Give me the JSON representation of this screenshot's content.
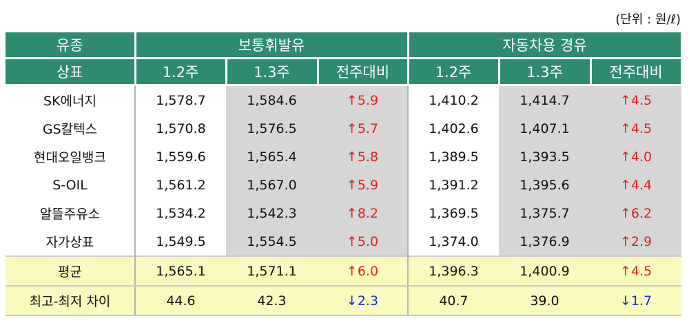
{
  "unit": "(단위 : 원/ℓ)",
  "header": {
    "col0_top": "유종",
    "col0_bottom": "상표",
    "gasoline": "보통휘발유",
    "diesel": "자동차용 경유",
    "week1": "1.2주",
    "week2": "1.3주",
    "change": "전주대비"
  },
  "rows": [
    {
      "brand": "SK에너지",
      "g1": "1,578.7",
      "g2": "1,584.6",
      "gc": "5.9",
      "gd": "up",
      "d1": "1,410.2",
      "d2": "1,414.7",
      "dc": "4.5",
      "dd": "up"
    },
    {
      "brand": "GS칼텍스",
      "g1": "1,570.8",
      "g2": "1,576.5",
      "gc": "5.7",
      "gd": "up",
      "d1": "1,402.6",
      "d2": "1,407.1",
      "dc": "4.5",
      "dd": "up"
    },
    {
      "brand": "현대오일뱅크",
      "g1": "1,559.6",
      "g2": "1,565.4",
      "gc": "5.8",
      "gd": "up",
      "d1": "1,389.5",
      "d2": "1,393.5",
      "dc": "4.0",
      "dd": "up"
    },
    {
      "brand": "S-OIL",
      "g1": "1,561.2",
      "g2": "1,567.0",
      "gc": "5.9",
      "gd": "up",
      "d1": "1,391.2",
      "d2": "1,395.6",
      "dc": "4.4",
      "dd": "up"
    },
    {
      "brand": "알뜰주유소",
      "g1": "1,534.2",
      "g2": "1,542.3",
      "gc": "8.2",
      "gd": "up",
      "d1": "1,369.5",
      "d2": "1,375.7",
      "dc": "6.2",
      "dd": "up"
    },
    {
      "brand": "자가상표",
      "g1": "1,549.5",
      "g2": "1,554.5",
      "gc": "5.0",
      "gd": "up",
      "d1": "1,374.0",
      "d2": "1,376.9",
      "dc": "2.9",
      "dd": "up"
    }
  ],
  "summary": [
    {
      "brand": "평균",
      "g1": "1,565.1",
      "g2": "1,571.1",
      "gc": "6.0",
      "gd": "up",
      "d1": "1,396.3",
      "d2": "1,400.9",
      "dc": "4.5",
      "dd": "up"
    },
    {
      "brand": "최고-최저 차이",
      "g1": "44.6",
      "g2": "42.3",
      "gc": "2.3",
      "gd": "down",
      "d1": "40.7",
      "d2": "39.0",
      "dc": "1.7",
      "dd": "down"
    }
  ],
  "colors": {
    "header": "#2e8b6f",
    "up": "#e0201a",
    "down": "#1a2fc8",
    "highlight": "#fafabe",
    "shade": "#d6d6d6"
  }
}
